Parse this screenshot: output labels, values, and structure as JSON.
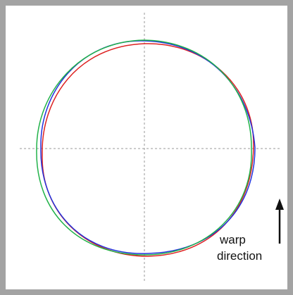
{
  "annotation": {
    "line1": "warp",
    "line2": "direction"
  }
}
